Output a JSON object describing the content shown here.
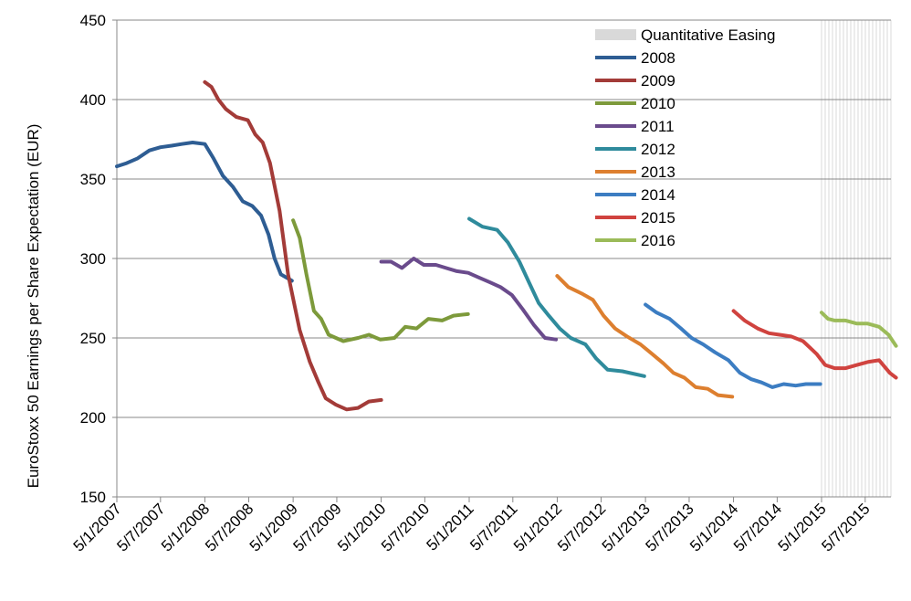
{
  "chart_data": {
    "type": "line",
    "title": "",
    "xlabel": "",
    "ylabel": "EuroStoxx 50 Earnings per Share Expectation (EUR)",
    "ylim": [
      150,
      450
    ],
    "yticks": [
      150,
      200,
      250,
      300,
      350,
      400,
      450
    ],
    "xlim": [
      "2007-01-05",
      "2015-11-15"
    ],
    "xticks": [
      {
        "date": "2007-01-05",
        "label": "5/1/2007"
      },
      {
        "date": "2007-07-05",
        "label": "5/7/2007"
      },
      {
        "date": "2008-01-05",
        "label": "5/1/2008"
      },
      {
        "date": "2008-07-05",
        "label": "5/7/2008"
      },
      {
        "date": "2009-01-05",
        "label": "5/1/2009"
      },
      {
        "date": "2009-07-05",
        "label": "5/7/2009"
      },
      {
        "date": "2010-01-05",
        "label": "5/1/2010"
      },
      {
        "date": "2010-07-05",
        "label": "5/7/2010"
      },
      {
        "date": "2011-01-05",
        "label": "5/1/2011"
      },
      {
        "date": "2011-07-05",
        "label": "5/7/2011"
      },
      {
        "date": "2012-01-05",
        "label": "5/1/2012"
      },
      {
        "date": "2012-07-05",
        "label": "5/7/2012"
      },
      {
        "date": "2013-01-05",
        "label": "5/1/2013"
      },
      {
        "date": "2013-07-05",
        "label": "5/7/2013"
      },
      {
        "date": "2014-01-05",
        "label": "5/1/2014"
      },
      {
        "date": "2014-07-05",
        "label": "5/7/2014"
      },
      {
        "date": "2015-01-05",
        "label": "5/1/2015"
      },
      {
        "date": "2015-07-05",
        "label": "5/7/2015"
      }
    ],
    "grid": "horizontal",
    "legend": "top-right",
    "qe_band": {
      "name": "Quantitative Easing",
      "start": "2015-01-05",
      "end": "2015-11-15",
      "color": "#d9d9d9"
    },
    "series": [
      {
        "name": "2008",
        "color": "#2e5d93",
        "points": [
          [
            "2007-01-05",
            358
          ],
          [
            "2007-02-15",
            360
          ],
          [
            "2007-04-01",
            363
          ],
          [
            "2007-05-20",
            368
          ],
          [
            "2007-07-05",
            370
          ],
          [
            "2007-08-20",
            371
          ],
          [
            "2007-10-01",
            372
          ],
          [
            "2007-11-15",
            373
          ],
          [
            "2008-01-05",
            372
          ],
          [
            "2008-02-10",
            363
          ],
          [
            "2008-03-20",
            352
          ],
          [
            "2008-05-01",
            345
          ],
          [
            "2008-06-10",
            336
          ],
          [
            "2008-07-20",
            333
          ],
          [
            "2008-08-25",
            327
          ],
          [
            "2008-09-25",
            315
          ],
          [
            "2008-10-20",
            300
          ],
          [
            "2008-11-15",
            290
          ],
          [
            "2008-12-31",
            286
          ]
        ]
      },
      {
        "name": "2009",
        "color": "#a33b38",
        "points": [
          [
            "2008-01-05",
            411
          ],
          [
            "2008-02-01",
            408
          ],
          [
            "2008-03-01",
            400
          ],
          [
            "2008-04-01",
            394
          ],
          [
            "2008-05-15",
            389
          ],
          [
            "2008-07-01",
            387
          ],
          [
            "2008-08-01",
            378
          ],
          [
            "2008-09-01",
            373
          ],
          [
            "2008-10-01",
            360
          ],
          [
            "2008-11-10",
            330
          ],
          [
            "2008-12-15",
            290
          ],
          [
            "2009-02-01",
            255
          ],
          [
            "2009-03-15",
            235
          ],
          [
            "2009-04-20",
            222
          ],
          [
            "2009-05-20",
            212
          ],
          [
            "2009-07-01",
            208
          ],
          [
            "2009-08-15",
            205
          ],
          [
            "2009-10-01",
            206
          ],
          [
            "2009-11-15",
            210
          ],
          [
            "2010-01-05",
            211
          ]
        ]
      },
      {
        "name": "2010",
        "color": "#7d9a3b",
        "points": [
          [
            "2009-01-05",
            324
          ],
          [
            "2009-02-01",
            313
          ],
          [
            "2009-03-01",
            290
          ],
          [
            "2009-04-01",
            267
          ],
          [
            "2009-05-01",
            262
          ],
          [
            "2009-06-01",
            252
          ],
          [
            "2009-08-01",
            248
          ],
          [
            "2009-10-01",
            250
          ],
          [
            "2009-11-15",
            252
          ],
          [
            "2010-01-01",
            249
          ],
          [
            "2010-03-01",
            250
          ],
          [
            "2010-04-15",
            257
          ],
          [
            "2010-06-01",
            256
          ],
          [
            "2010-07-20",
            262
          ],
          [
            "2010-09-15",
            261
          ],
          [
            "2010-11-01",
            264
          ],
          [
            "2010-12-31",
            265
          ]
        ]
      },
      {
        "name": "2011",
        "color": "#6a4b8c",
        "points": [
          [
            "2010-01-05",
            298
          ],
          [
            "2010-02-15",
            298
          ],
          [
            "2010-04-01",
            294
          ],
          [
            "2010-05-20",
            300
          ],
          [
            "2010-07-01",
            296
          ],
          [
            "2010-08-20",
            296
          ],
          [
            "2010-10-01",
            294
          ],
          [
            "2010-11-15",
            292
          ],
          [
            "2011-01-01",
            291
          ],
          [
            "2011-02-15",
            288
          ],
          [
            "2011-04-01",
            285
          ],
          [
            "2011-05-15",
            282
          ],
          [
            "2011-07-01",
            277
          ],
          [
            "2011-08-15",
            268
          ],
          [
            "2011-10-01",
            258
          ],
          [
            "2011-11-15",
            250
          ],
          [
            "2011-12-31",
            249
          ]
        ]
      },
      {
        "name": "2012",
        "color": "#2f8b9c",
        "points": [
          [
            "2011-01-05",
            325
          ],
          [
            "2011-03-01",
            320
          ],
          [
            "2011-05-01",
            318
          ],
          [
            "2011-06-15",
            310
          ],
          [
            "2011-08-01",
            298
          ],
          [
            "2011-09-10",
            285
          ],
          [
            "2011-10-20",
            272
          ],
          [
            "2011-12-01",
            264
          ],
          [
            "2012-01-15",
            256
          ],
          [
            "2012-03-01",
            250
          ],
          [
            "2012-05-01",
            246
          ],
          [
            "2012-06-15",
            237
          ],
          [
            "2012-08-01",
            230
          ],
          [
            "2012-10-01",
            229
          ],
          [
            "2012-12-31",
            226
          ]
        ]
      },
      {
        "name": "2013",
        "color": "#dd7f2f",
        "points": [
          [
            "2012-01-05",
            289
          ],
          [
            "2012-02-20",
            282
          ],
          [
            "2012-04-15",
            278
          ],
          [
            "2012-06-01",
            274
          ],
          [
            "2012-07-15",
            264
          ],
          [
            "2012-09-01",
            256
          ],
          [
            "2012-10-20",
            251
          ],
          [
            "2012-12-15",
            246
          ],
          [
            "2013-02-01",
            240
          ],
          [
            "2013-03-20",
            234
          ],
          [
            "2013-05-01",
            228
          ],
          [
            "2013-06-15",
            225
          ],
          [
            "2013-08-01",
            219
          ],
          [
            "2013-09-20",
            218
          ],
          [
            "2013-11-01",
            214
          ],
          [
            "2013-12-31",
            213
          ]
        ]
      },
      {
        "name": "2014",
        "color": "#3c7dc2",
        "points": [
          [
            "2013-01-05",
            271
          ],
          [
            "2013-02-20",
            266
          ],
          [
            "2013-04-15",
            262
          ],
          [
            "2013-06-01",
            256
          ],
          [
            "2013-07-15",
            250
          ],
          [
            "2013-09-01",
            246
          ],
          [
            "2013-10-20",
            241
          ],
          [
            "2013-12-15",
            236
          ],
          [
            "2014-02-01",
            228
          ],
          [
            "2014-03-20",
            224
          ],
          [
            "2014-05-01",
            222
          ],
          [
            "2014-06-15",
            219
          ],
          [
            "2014-08-01",
            221
          ],
          [
            "2014-09-20",
            220
          ],
          [
            "2014-11-01",
            221
          ],
          [
            "2014-12-31",
            221
          ]
        ]
      },
      {
        "name": "2015",
        "color": "#d0433f",
        "points": [
          [
            "2014-01-05",
            267
          ],
          [
            "2014-02-20",
            261
          ],
          [
            "2014-04-15",
            256
          ],
          [
            "2014-06-01",
            253
          ],
          [
            "2014-07-15",
            252
          ],
          [
            "2014-09-01",
            251
          ],
          [
            "2014-10-20",
            248
          ],
          [
            "2014-12-15",
            240
          ],
          [
            "2015-01-20",
            233
          ],
          [
            "2015-03-01",
            231
          ],
          [
            "2015-04-15",
            231
          ],
          [
            "2015-06-01",
            233
          ],
          [
            "2015-07-20",
            235
          ],
          [
            "2015-09-01",
            236
          ],
          [
            "2015-10-15",
            228
          ],
          [
            "2015-11-10",
            225
          ]
        ]
      },
      {
        "name": "2016",
        "color": "#9bbb59",
        "points": [
          [
            "2015-01-05",
            266
          ],
          [
            "2015-02-01",
            262
          ],
          [
            "2015-03-01",
            261
          ],
          [
            "2015-04-15",
            261
          ],
          [
            "2015-06-01",
            259
          ],
          [
            "2015-07-15",
            259
          ],
          [
            "2015-09-01",
            257
          ],
          [
            "2015-10-10",
            252
          ],
          [
            "2015-11-10",
            245
          ]
        ]
      }
    ]
  }
}
